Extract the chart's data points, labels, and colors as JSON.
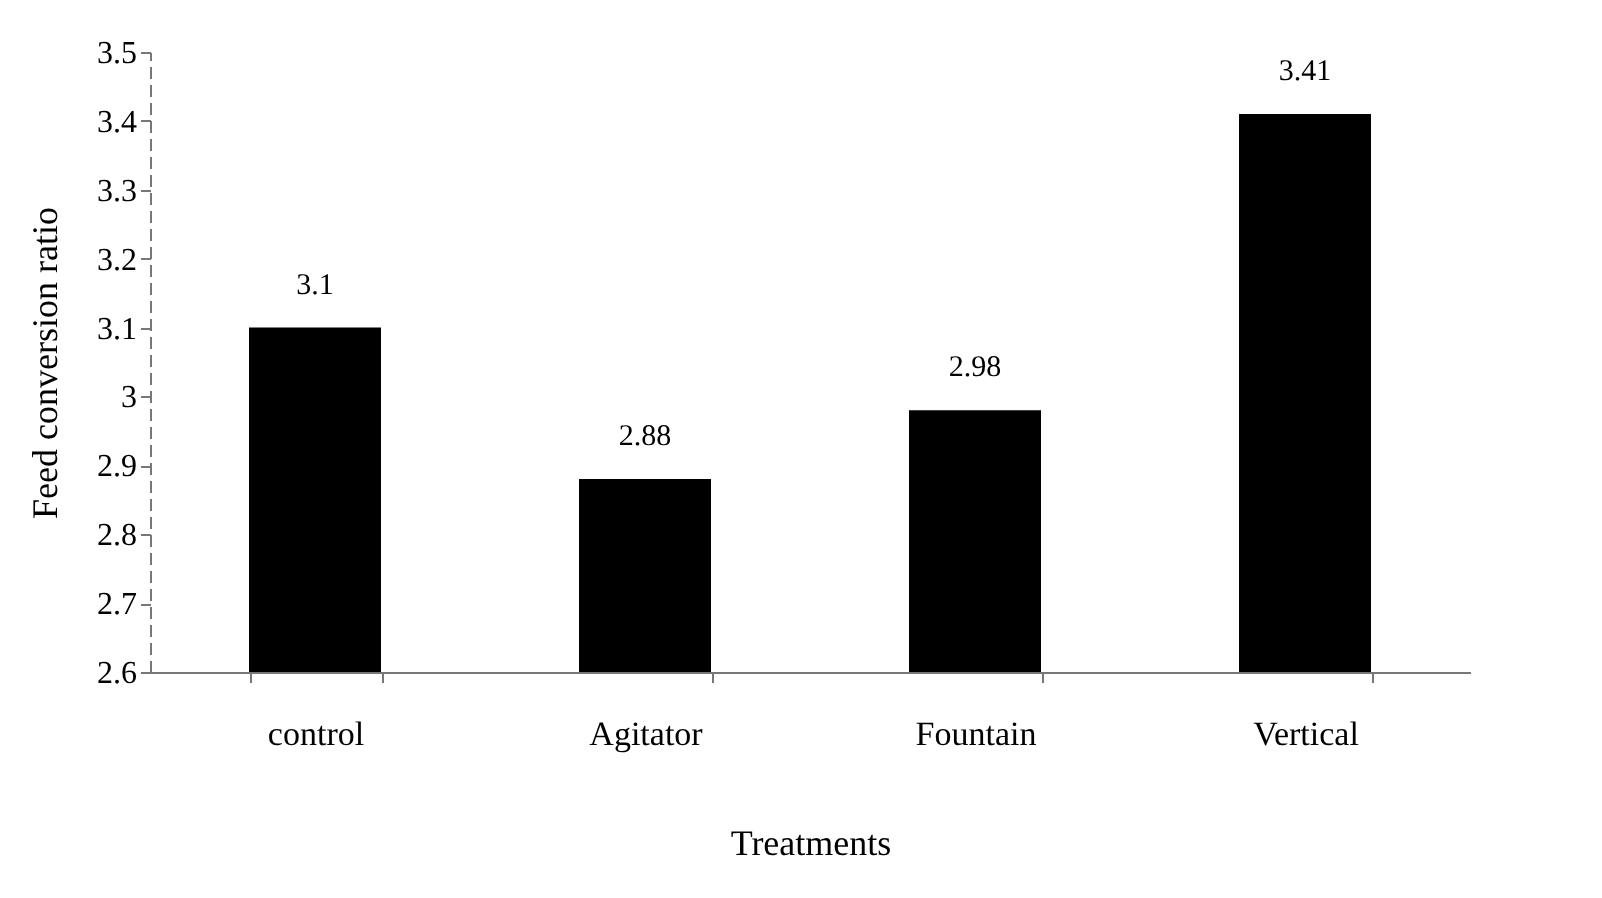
{
  "chart_data": {
    "type": "bar",
    "xlabel": "Treatments",
    "ylabel": "Feed conversion ratio",
    "categories": [
      "control",
      "Agitator",
      "Fountain",
      "Vertical"
    ],
    "values": [
      3.1,
      2.88,
      2.98,
      3.41
    ],
    "color": "#000000",
    "ylim": [
      2.6,
      3.5
    ],
    "yticks": [
      2.6,
      2.7,
      2.8,
      2.9,
      3,
      3.1,
      3.2,
      3.3,
      3.4,
      3.5
    ],
    "data_labels": true
  }
}
